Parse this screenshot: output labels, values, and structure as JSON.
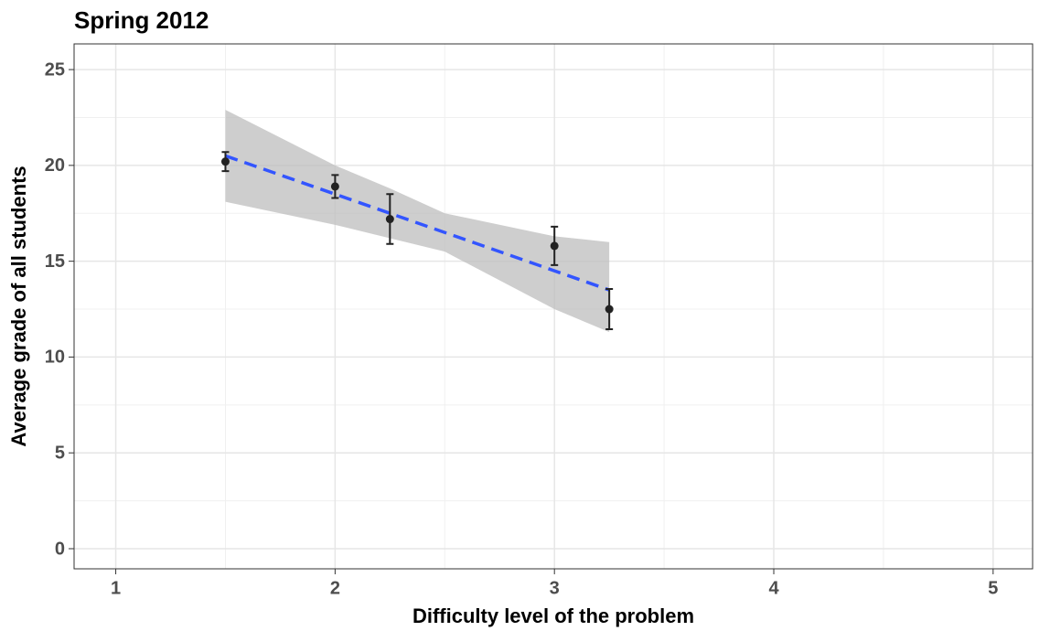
{
  "chart_data": {
    "type": "scatter",
    "title": "Spring 2012",
    "x_label": "Difficulty level of the problem",
    "y_label": "Average grade of all students",
    "points": {
      "x": [
        1.5,
        2,
        2.25,
        3,
        3.25
      ],
      "y": [
        20.2,
        18.9,
        17.2,
        15.8,
        12.5
      ],
      "error": [
        0.5,
        0.6,
        1.3,
        1.0,
        1.05
      ],
      "color": "#222222"
    },
    "fit": {
      "x": [
        1.5,
        3.25
      ],
      "y": [
        20.5,
        13.5
      ],
      "color": "#3355ff"
    },
    "band": {
      "x": [
        1.5,
        2,
        2.25,
        2.5,
        3,
        3.25
      ],
      "lower": [
        18.1,
        16.9,
        16.2,
        15.5,
        12.5,
        11.3
      ],
      "upper": [
        22.9,
        20.0,
        18.8,
        17.5,
        16.3,
        16.0
      ],
      "color": "#bdbdbd"
    },
    "xlim": [
      0.81,
      5.18
    ],
    "ylim": [
      -1.05,
      26.34
    ],
    "xticks": [
      1,
      2,
      3,
      4,
      5
    ],
    "yticks": [
      0,
      5,
      10,
      15,
      20,
      25
    ],
    "grid": true
  }
}
